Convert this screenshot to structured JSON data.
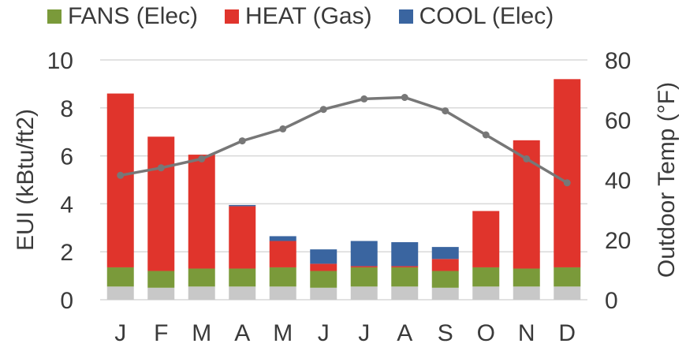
{
  "chart_data": {
    "type": "bar",
    "stacked": true,
    "categories": [
      "J",
      "F",
      "M",
      "A",
      "M",
      "J",
      "J",
      "A",
      "S",
      "O",
      "N",
      "D"
    ],
    "series": [
      {
        "name": "",
        "color": "#c8c8c8",
        "values": [
          0.55,
          0.5,
          0.55,
          0.55,
          0.55,
          0.5,
          0.55,
          0.55,
          0.5,
          0.55,
          0.55,
          0.55
        ]
      },
      {
        "name": "FANS (Elec)",
        "color": "#7a9a3a",
        "values": [
          0.8,
          0.7,
          0.75,
          0.75,
          0.8,
          0.7,
          0.8,
          0.8,
          0.7,
          0.8,
          0.75,
          0.8
        ]
      },
      {
        "name": "HEAT (Gas)",
        "color": "#e0342c",
        "values": [
          7.25,
          5.6,
          4.75,
          2.6,
          1.1,
          0.3,
          0.05,
          0.05,
          0.5,
          2.35,
          5.35,
          7.85
        ]
      },
      {
        "name": "COOL (Elec)",
        "color": "#3a65a0",
        "values": [
          0.0,
          0.0,
          0.0,
          0.05,
          0.2,
          0.6,
          1.05,
          1.0,
          0.5,
          0.0,
          0.0,
          0.0
        ]
      }
    ],
    "line": {
      "name": "",
      "color": "#777777",
      "axis": "right",
      "values": [
        41.5,
        44,
        47,
        53,
        57,
        63.5,
        67,
        67.5,
        63,
        55,
        47,
        39
      ]
    },
    "ylim": [
      0,
      10
    ],
    "yticks": [
      "0",
      "2",
      "4",
      "6",
      "8",
      "10"
    ],
    "ylabel": "EUI (kBtu/ft2)",
    "y2lim": [
      0,
      80
    ],
    "y2ticks": [
      "0",
      "20",
      "40",
      "60",
      "80"
    ],
    "y2label": "Outdoor Temp (°F)",
    "legend_position": "top",
    "grid": true,
    "colors": {
      "grid": "#d9d9d9",
      "text": "#3a3a3a"
    }
  }
}
